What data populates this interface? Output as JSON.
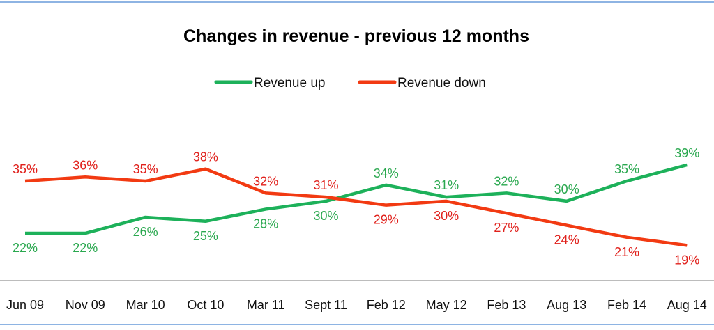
{
  "chart_data": {
    "type": "line",
    "title": "Changes in revenue - previous 12 months",
    "xlabel": "",
    "ylabel": "",
    "categories": [
      "Jun 09",
      "Nov 09",
      "Mar 10",
      "Oct 10",
      "Mar 11",
      "Sept 11",
      "Feb 12",
      "May 12",
      "Feb 13",
      "Aug 13",
      "Feb 14",
      "Aug 14"
    ],
    "series": [
      {
        "name": "Revenue up",
        "color": "#1db15a",
        "label_color": "#2aa84f",
        "values": [
          22,
          22,
          26,
          25,
          28,
          30,
          34,
          31,
          32,
          30,
          35,
          39
        ],
        "labels": [
          "22%",
          "22%",
          "26%",
          "25%",
          "28%",
          "30%",
          "34%",
          "31%",
          "32%",
          "30%",
          "35%",
          "39%"
        ]
      },
      {
        "name": "Revenue down",
        "color": "#f23a12",
        "label_color": "#e0201b",
        "values": [
          35,
          36,
          35,
          38,
          32,
          31,
          29,
          30,
          27,
          24,
          21,
          19
        ],
        "labels": [
          "35%",
          "36%",
          "35%",
          "38%",
          "32%",
          "31%",
          "29%",
          "30%",
          "27%",
          "24%",
          "21%",
          "19%"
        ]
      }
    ],
    "grid": false,
    "legend_position": "top-center",
    "y_axis_shown": false
  }
}
